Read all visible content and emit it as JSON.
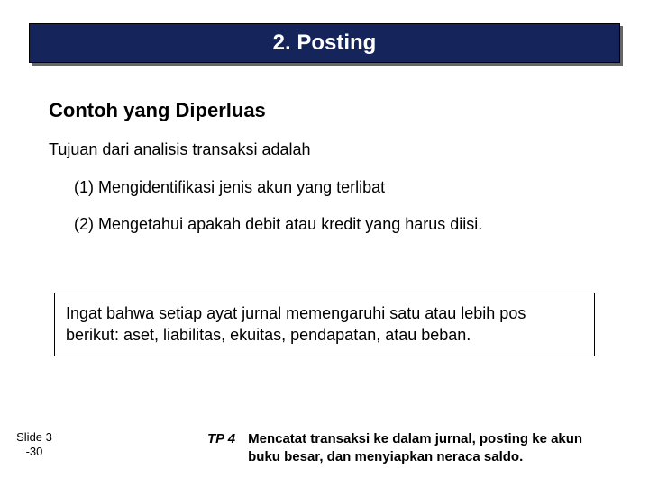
{
  "banner": {
    "title": "2. Posting"
  },
  "content": {
    "subtitle": "Contoh yang Diperluas",
    "intro": "Tujuan dari analisis transaksi adalah",
    "items": [
      "(1)  Mengidentifikasi jenis akun yang terlibat",
      "(2)  Mengetahui apakah debit atau kredit yang harus diisi."
    ]
  },
  "note": "Ingat bahwa setiap ayat jurnal memengaruhi satu atau lebih pos berikut: aset, liabilitas, ekuitas, pendapatan, atau beban.",
  "footer": {
    "slide_label_line1": "Slide 3",
    "slide_label_line2": "-30",
    "tp_label": "TP 4",
    "tp_text": "Mencatat transaksi ke dalam jurnal, posting ke akun buku besar, dan menyiapkan neraca saldo."
  },
  "colors": {
    "banner_bg": "#15245a",
    "banner_text": "#ffffff",
    "body_text": "#000000",
    "background": "#ffffff"
  },
  "typography": {
    "title_fontsize": 24,
    "subtitle_fontsize": 22,
    "body_fontsize": 18,
    "footer_fontsize": 15,
    "slidenum_fontsize": 13
  }
}
